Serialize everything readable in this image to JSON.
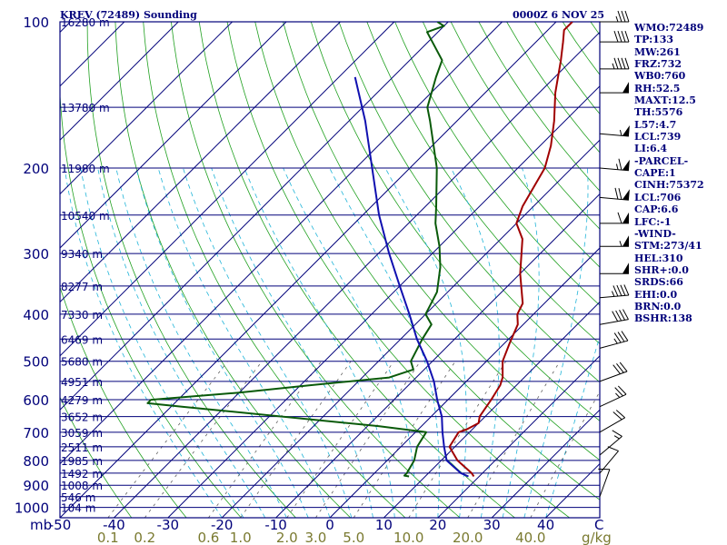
{
  "chart_data": {
    "type": "line",
    "title": "KREV (72489) Sounding",
    "valid_time": "0000Z  6 NOV 25",
    "x_axis": {
      "unit_label": "C",
      "pressure_unit_label": "mb",
      "ticks": [
        "-50",
        "-40",
        "-30",
        "-20",
        "-10",
        "0",
        "10",
        "20",
        "30",
        "40"
      ],
      "xlim": [
        -50,
        50
      ]
    },
    "y_axis": {
      "type": "log-pressure",
      "ylim": [
        1050,
        100
      ],
      "ticks": [
        "100",
        "200",
        "300",
        "400",
        "500",
        "600",
        "700",
        "800",
        "900",
        "1000"
      ]
    },
    "mixing_ratio_axis": {
      "unit_label": "g/kg",
      "labels": [
        "0.1",
        "0.2",
        "0.6",
        "1.0",
        "2.0",
        "3.0",
        "5.0",
        "10.0",
        "20.0",
        "40.0"
      ]
    },
    "height_labels": [
      {
        "p": 100,
        "h": "16280 m"
      },
      {
        "p": 150,
        "h": "13780 m"
      },
      {
        "p": 200,
        "h": "11980 m"
      },
      {
        "p": 250,
        "h": "10540 m"
      },
      {
        "p": 300,
        "h": "9340 m"
      },
      {
        "p": 350,
        "h": "8277 m"
      },
      {
        "p": 400,
        "h": "7330 m"
      },
      {
        "p": 450,
        "h": "6469 m"
      },
      {
        "p": 500,
        "h": "5680 m"
      },
      {
        "p": 550,
        "h": "4951 m"
      },
      {
        "p": 600,
        "h": "4279 m"
      },
      {
        "p": 650,
        "h": "3652 m"
      },
      {
        "p": 700,
        "h": "3059 m"
      },
      {
        "p": 750,
        "h": "2511 m"
      },
      {
        "p": 800,
        "h": "1985 m"
      },
      {
        "p": 850,
        "h": "1492 m"
      },
      {
        "p": 900,
        "h": "1008 m"
      },
      {
        "p": 950,
        "h": "546 m"
      },
      {
        "p": 1000,
        "h": "104 m"
      }
    ],
    "series": [
      {
        "name": "Temperature",
        "color": "#a00000",
        "points": [
          [
            863,
            19
          ],
          [
            850,
            18
          ],
          [
            800,
            13
          ],
          [
            750,
            9
          ],
          [
            700,
            8
          ],
          [
            690,
            9
          ],
          [
            670,
            10
          ],
          [
            650,
            9
          ],
          [
            600,
            8
          ],
          [
            560,
            7
          ],
          [
            540,
            6
          ],
          [
            500,
            3
          ],
          [
            460,
            1
          ],
          [
            420,
            -1
          ],
          [
            400,
            -3
          ],
          [
            380,
            -4
          ],
          [
            330,
            -10
          ],
          [
            280,
            -16
          ],
          [
            260,
            -20
          ],
          [
            240,
            -22
          ],
          [
            200,
            -25
          ],
          [
            180,
            -28
          ],
          [
            160,
            -32
          ],
          [
            140,
            -37
          ],
          [
            120,
            -42
          ],
          [
            110,
            -45
          ],
          [
            104,
            -47
          ],
          [
            100,
            -47
          ]
        ]
      },
      {
        "name": "Dewpoint",
        "color": "#0a5a0a",
        "points": [
          [
            863,
            7
          ],
          [
            860,
            6
          ],
          [
            850,
            6
          ],
          [
            800,
            5
          ],
          [
            750,
            3
          ],
          [
            700,
            2
          ],
          [
            680,
            -8
          ],
          [
            620,
            -48
          ],
          [
            610,
            -55
          ],
          [
            600,
            -55
          ],
          [
            580,
            -40
          ],
          [
            560,
            -28
          ],
          [
            540,
            -15
          ],
          [
            520,
            -12
          ],
          [
            500,
            -14
          ],
          [
            450,
            -16
          ],
          [
            420,
            -17
          ],
          [
            400,
            -20
          ],
          [
            360,
            -22
          ],
          [
            320,
            -26
          ],
          [
            290,
            -30
          ],
          [
            260,
            -35
          ],
          [
            240,
            -38
          ],
          [
            200,
            -45
          ],
          [
            160,
            -55
          ],
          [
            150,
            -58
          ],
          [
            130,
            -62
          ],
          [
            120,
            -64
          ],
          [
            105,
            -72
          ],
          [
            102,
            -70
          ],
          [
            100,
            -72
          ]
        ]
      },
      {
        "name": "Parcel",
        "color": "#1010b0",
        "points": [
          [
            863,
            18
          ],
          [
            850,
            16
          ],
          [
            800,
            11
          ],
          [
            750,
            8
          ],
          [
            700,
            5
          ],
          [
            650,
            2
          ],
          [
            600,
            -2
          ],
          [
            550,
            -6
          ],
          [
            500,
            -11
          ],
          [
            450,
            -17
          ],
          [
            400,
            -23
          ],
          [
            350,
            -30
          ],
          [
            300,
            -38
          ],
          [
            250,
            -47
          ],
          [
            200,
            -57
          ],
          [
            160,
            -67
          ],
          [
            130,
            -77
          ]
        ]
      }
    ]
  },
  "wind_barbs": [
    {
      "p": 100,
      "dir": 270,
      "spd": 35
    },
    {
      "p": 110,
      "dir": 270,
      "spd": 40
    },
    {
      "p": 125,
      "dir": 270,
      "spd": 45
    },
    {
      "p": 140,
      "dir": 270,
      "spd": 50
    },
    {
      "p": 170,
      "dir": 275,
      "spd": 55
    },
    {
      "p": 200,
      "dir": 275,
      "spd": 65
    },
    {
      "p": 230,
      "dir": 275,
      "spd": 70
    },
    {
      "p": 260,
      "dir": 270,
      "spd": 60
    },
    {
      "p": 290,
      "dir": 270,
      "spd": 55
    },
    {
      "p": 330,
      "dir": 270,
      "spd": 50
    },
    {
      "p": 370,
      "dir": 265,
      "spd": 45
    },
    {
      "p": 420,
      "dir": 260,
      "spd": 40
    },
    {
      "p": 470,
      "dir": 255,
      "spd": 35
    },
    {
      "p": 550,
      "dir": 250,
      "spd": 30
    },
    {
      "p": 620,
      "dir": 245,
      "spd": 25
    },
    {
      "p": 700,
      "dir": 240,
      "spd": 20
    },
    {
      "p": 780,
      "dir": 230,
      "spd": 15
    },
    {
      "p": 850,
      "dir": 220,
      "spd": 10
    },
    {
      "p": 950,
      "dir": 200,
      "spd": 10
    }
  ],
  "stats": [
    "WMO:72489",
    "TP:133",
    "MW:261",
    "FRZ:732",
    "WB0:760",
    "RH:52.5",
    "MAXT:12.5",
    "TH:5576",
    "L57:4.7",
    "LCL:739",
    "LI:6.4",
    "-PARCEL-",
    "CAPE:1",
    "CINH:75372",
    "LCL:706",
    "CAP:6.6",
    "LFC:-1",
    "-WIND-",
    "STM:273/41",
    "HEL:310",
    "SHR+:0.0",
    "SRDS:66",
    "EHI:0.0",
    "BRN:0.0",
    "BSHR:138"
  ],
  "colors": {
    "isobar": "#00007a",
    "isotherm": "#00007a",
    "dry_adiabat": "#20a020",
    "moist_adiabat": "#20b4d8",
    "mixing_ratio": "#606060",
    "label_text": "#00007a",
    "mixing_label": "#7a7a30"
  }
}
